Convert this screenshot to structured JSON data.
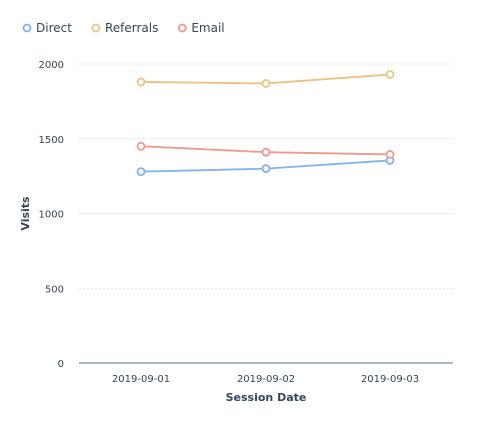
{
  "chart_data": {
    "type": "line",
    "xlabel": "Session Date",
    "ylabel": "Visits",
    "categories": [
      "2019-09-01",
      "2019-09-02",
      "2019-09-03"
    ],
    "ylim": [
      0,
      2000
    ],
    "yticks": [
      0,
      500,
      1000,
      1500,
      2000
    ],
    "grid": true,
    "legend_position": "top-left",
    "series": [
      {
        "name": "Direct",
        "color": "#7fb3f0",
        "values": [
          1280,
          1300,
          1355
        ]
      },
      {
        "name": "Referrals",
        "color": "#f0c27f",
        "values": [
          1880,
          1870,
          1930
        ]
      },
      {
        "name": "Email",
        "color": "#ef9a88",
        "values": [
          1450,
          1410,
          1395
        ]
      }
    ]
  },
  "colors": {
    "gridline": "#dfe3eb",
    "axis": "#516f90",
    "text": "#33475b"
  }
}
